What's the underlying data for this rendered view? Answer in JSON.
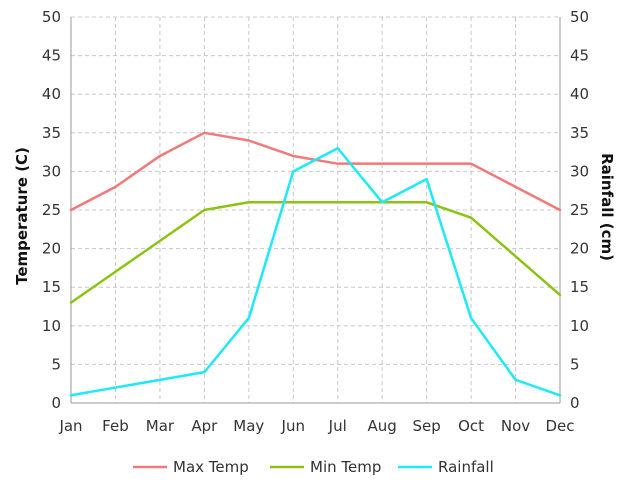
{
  "chart_data": {
    "type": "line",
    "title": "",
    "categories": [
      "Jan",
      "Feb",
      "Mar",
      "Apr",
      "May",
      "Jun",
      "Jul",
      "Aug",
      "Sep",
      "Oct",
      "Nov",
      "Dec"
    ],
    "series": [
      {
        "name": "Max Temp",
        "color": "#f07a7a",
        "axis": "left",
        "values": [
          25,
          28,
          32,
          35,
          34,
          32,
          31,
          31,
          31,
          31,
          28,
          25
        ]
      },
      {
        "name": "Min Temp",
        "color": "#8ac313",
        "axis": "left",
        "values": [
          13,
          17,
          21,
          25,
          26,
          26,
          26,
          26,
          26,
          24,
          19,
          14
        ]
      },
      {
        "name": "Rainfall",
        "color": "#1de9f7",
        "axis": "right",
        "values": [
          1,
          2,
          3,
          4,
          11,
          30,
          33,
          26,
          29,
          11,
          3,
          1
        ]
      }
    ],
    "ylabel": "Temperature (C)",
    "y2label": "Rainfall (cm)",
    "ylim": [
      0,
      50
    ],
    "y2lim": [
      0,
      50
    ],
    "yticks": [
      "0",
      "5",
      "10",
      "15",
      "20",
      "25",
      "30",
      "35",
      "40",
      "45",
      "50"
    ],
    "y2ticks": [
      "0",
      "5",
      "10",
      "15",
      "20",
      "25",
      "30",
      "35",
      "40",
      "45",
      "50"
    ],
    "grid": true,
    "grid_style": "dashed",
    "legend_position": "bottom"
  }
}
